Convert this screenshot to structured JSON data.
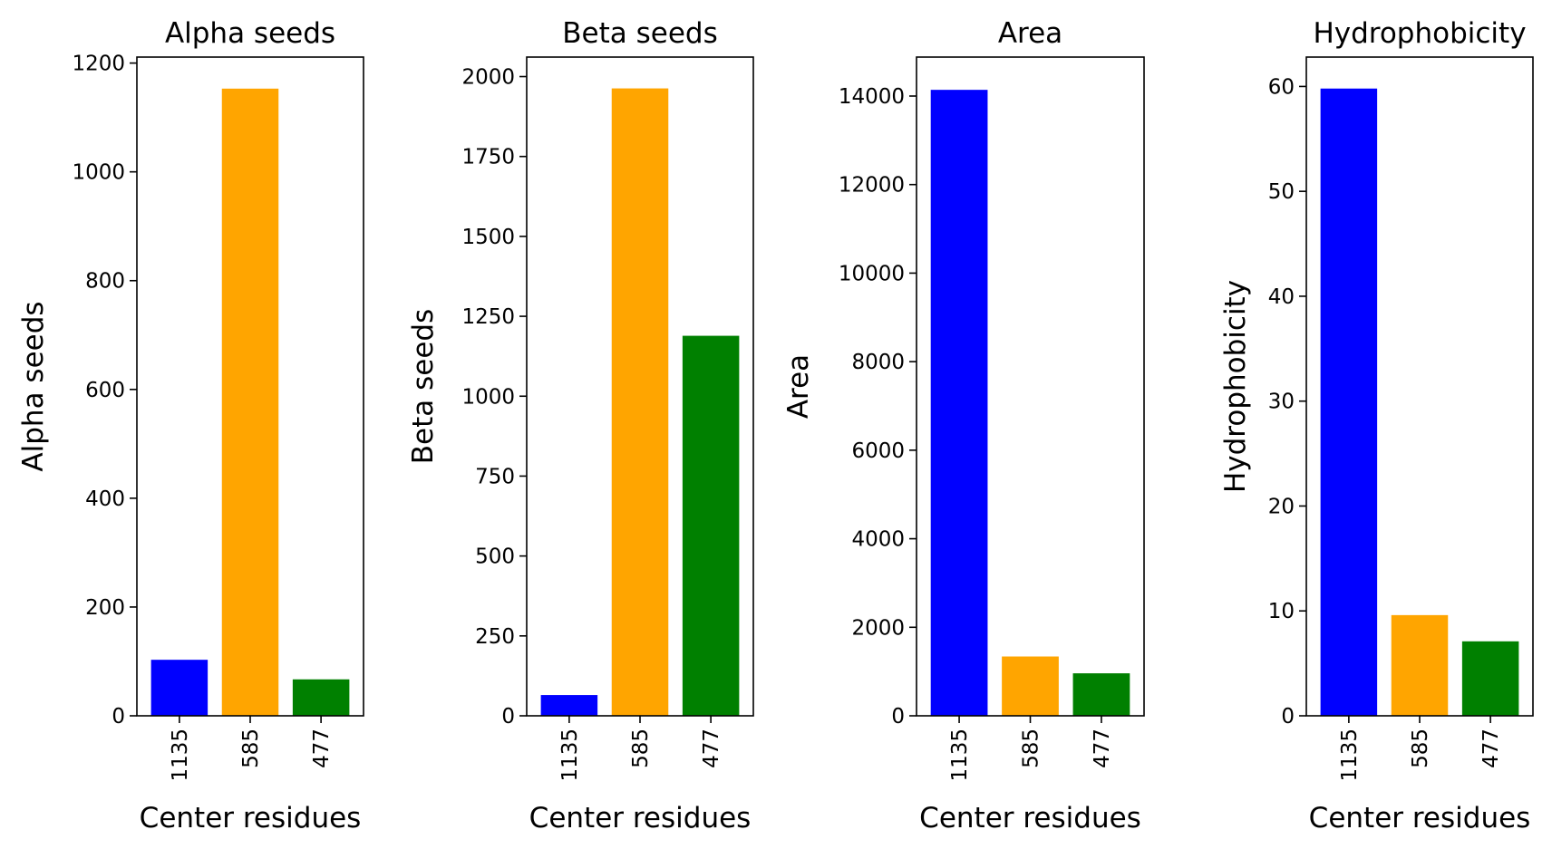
{
  "chart_data": [
    {
      "type": "bar",
      "title": "Alpha seeds",
      "xlabel": "Center residues",
      "ylabel": "Alpha seeds",
      "categories": [
        "1135",
        "585",
        "477"
      ],
      "values": [
        103,
        1153,
        67
      ],
      "colors": [
        "#0000ff",
        "#ffa500",
        "#008000"
      ],
      "ylim": [
        0,
        1211
      ],
      "yticks": [
        0,
        200,
        400,
        600,
        800,
        1000,
        1200
      ],
      "ytick_labels": [
        "0",
        "200",
        "400",
        "600",
        "800",
        "1000",
        "1200"
      ]
    },
    {
      "type": "bar",
      "title": "Beta seeds",
      "xlabel": "Center residues",
      "ylabel": "Beta seeds",
      "categories": [
        "1135",
        "585",
        "477"
      ],
      "values": [
        65,
        1963,
        1189
      ],
      "colors": [
        "#0000ff",
        "#ffa500",
        "#008000"
      ],
      "ylim": [
        0,
        2061
      ],
      "yticks": [
        0,
        250,
        500,
        750,
        1000,
        1250,
        1500,
        1750,
        2000
      ],
      "ytick_labels": [
        "0",
        "250",
        "500",
        "750",
        "1000",
        "1250",
        "1500",
        "1750",
        "2000"
      ]
    },
    {
      "type": "bar",
      "title": "Area",
      "xlabel": "Center residues",
      "ylabel": "Area",
      "categories": [
        "1135",
        "585",
        "477"
      ],
      "values": [
        14140,
        1340,
        960
      ],
      "colors": [
        "#0000ff",
        "#ffa500",
        "#008000"
      ],
      "ylim": [
        0,
        14880
      ],
      "yticks": [
        0,
        2000,
        4000,
        6000,
        8000,
        10000,
        12000,
        14000
      ],
      "ytick_labels": [
        "0",
        "2000",
        "4000",
        "6000",
        "8000",
        "10000",
        "12000",
        "14000"
      ]
    },
    {
      "type": "bar",
      "title": "Hydrophobicity",
      "xlabel": "Center residues",
      "ylabel": "Hydrophobicity",
      "categories": [
        "1135",
        "585",
        "477"
      ],
      "values": [
        59.8,
        9.6,
        7.1
      ],
      "colors": [
        "#0000ff",
        "#ffa500",
        "#008000"
      ],
      "ylim": [
        0,
        62.8
      ],
      "yticks": [
        0,
        10,
        20,
        30,
        40,
        50,
        60
      ],
      "ytick_labels": [
        "0",
        "10",
        "20",
        "30",
        "40",
        "50",
        "60"
      ]
    }
  ]
}
